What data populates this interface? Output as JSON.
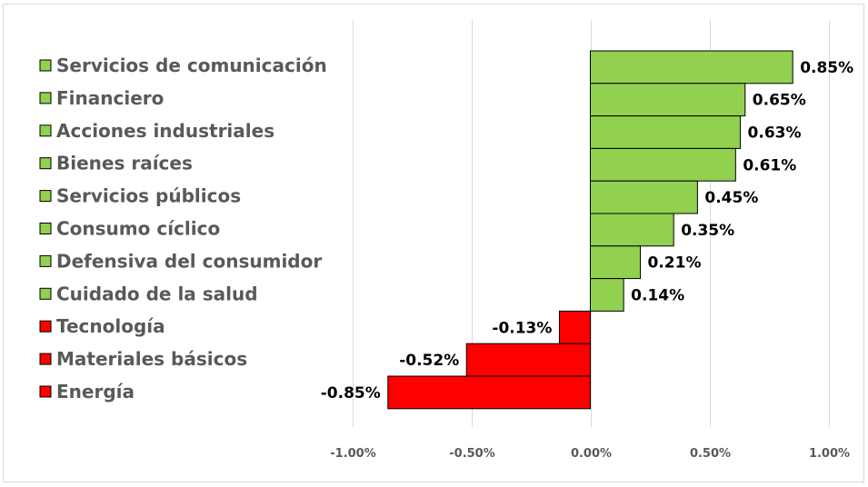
{
  "chart_data": {
    "type": "bar",
    "orientation": "horizontal",
    "title": "",
    "xlabel": "",
    "ylabel": "",
    "categories": [
      "Servicios de comunicación",
      "Financiero",
      "Acciones industriales",
      "Bienes raíces",
      "Servicios públicos",
      "Consumo cíclico",
      "Defensiva del consumidor",
      "Cuidado de la salud",
      "Tecnología",
      "Materiales básicos",
      "Energía"
    ],
    "values": [
      0.85,
      0.65,
      0.63,
      0.61,
      0.45,
      0.35,
      0.21,
      0.14,
      -0.13,
      -0.52,
      -0.85
    ],
    "value_labels": [
      "0.85%",
      "0.65%",
      "0.63%",
      "0.61%",
      "0.45%",
      "0.35%",
      "0.21%",
      "0.14%",
      "-0.13%",
      "-0.52%",
      "-0.85%"
    ],
    "xlim": [
      -1.0,
      1.0
    ],
    "x_ticks": [
      -1.0,
      -0.5,
      0.0,
      0.5,
      1.0
    ],
    "x_tick_labels": [
      "-1.00%",
      "-0.50%",
      "0.00%",
      "0.50%",
      "1.00%"
    ],
    "grid": "vertical",
    "legend": "left",
    "colors": {
      "positive": "#92d050",
      "negative": "#ff0000",
      "bar_border": "#000000",
      "gridline": "#d9d9d9",
      "frame": "#d9d9d9",
      "category_text": "#595959"
    }
  }
}
